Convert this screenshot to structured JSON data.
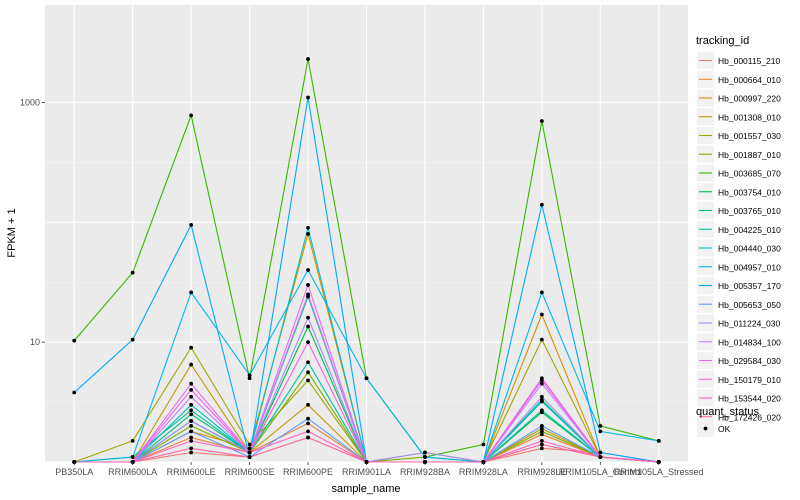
{
  "chart_data": {
    "type": "line",
    "title": "",
    "xlabel": "sample_name",
    "ylabel": "FPKM + 1",
    "y_scale": "log10",
    "ylim": [
      1,
      6500
    ],
    "grid": true,
    "background": "#EBEBEB",
    "yticks": [
      10,
      1000
    ],
    "categories": [
      "PB350LA",
      "RRIM600LA",
      "RRIM600LE",
      "RRIM600SE",
      "RRIM600PE",
      "RRIM901LA",
      "RRIM928BA",
      "RRIM928LA",
      "RRIM928LE",
      "RRIM105LA_Control",
      "RRIM105LA_Stressed"
    ],
    "legend_title": "tracking_id",
    "legend_position": "right",
    "series": [
      {
        "name": "Hb_000115_210",
        "color": "#F8766D",
        "values": [
          1,
          1,
          1.2,
          1.1,
          1.6,
          1,
          1,
          1,
          1.3,
          1.2,
          1
        ]
      },
      {
        "name": "Hb_000664_010",
        "color": "#EA8331",
        "values": [
          1,
          1,
          1.6,
          1.2,
          2.1,
          1,
          1,
          1,
          1.7,
          1.1,
          1
        ]
      },
      {
        "name": "Hb_000997_220",
        "color": "#D89000",
        "values": [
          1,
          1,
          1.8,
          1.3,
          80,
          1,
          1,
          1,
          17,
          1.1,
          1
        ]
      },
      {
        "name": "Hb_001308_010",
        "color": "#C09B00",
        "values": [
          1,
          1,
          6.5,
          1.2,
          3,
          1,
          1.2,
          1,
          1.9,
          1.1,
          1
        ]
      },
      {
        "name": "Hb_001557_030",
        "color": "#A3A500",
        "values": [
          1,
          1.5,
          9,
          1.4,
          4.8,
          1,
          1,
          1,
          10.5,
          1.1,
          1
        ]
      },
      {
        "name": "Hb_001887_010",
        "color": "#7CAE00",
        "values": [
          1,
          1,
          2,
          1.2,
          5.6,
          1,
          1.1,
          1,
          1.8,
          1.1,
          1
        ]
      },
      {
        "name": "Hb_003685_070",
        "color": "#39B600",
        "values": [
          10.3,
          38,
          780,
          5,
          2300,
          5,
          1.1,
          1.4,
          700,
          2,
          1.5
        ]
      },
      {
        "name": "Hb_003754_010",
        "color": "#00BB4E",
        "values": [
          1,
          1,
          2.2,
          1.2,
          13.5,
          1,
          1,
          1,
          2.6,
          1.1,
          1
        ]
      },
      {
        "name": "Hb_003765_010",
        "color": "#00BF7D",
        "values": [
          1,
          1,
          2.5,
          1.2,
          24,
          1,
          1,
          1,
          3.3,
          1.1,
          1
        ]
      },
      {
        "name": "Hb_004225_010",
        "color": "#00C1A3",
        "values": [
          1,
          1.1,
          2.7,
          1.2,
          6.8,
          1,
          1,
          1,
          2.7,
          1.1,
          1
        ]
      },
      {
        "name": "Hb_004440_030",
        "color": "#00BFC4",
        "values": [
          1,
          1,
          3,
          1.2,
          90,
          1,
          1,
          1,
          3.2,
          1.1,
          1
        ]
      },
      {
        "name": "Hb_004957_010",
        "color": "#00B8E7",
        "values": [
          1,
          1.1,
          26,
          5.3,
          40,
          5,
          1.1,
          1,
          26,
          1.8,
          1.5
        ]
      },
      {
        "name": "Hb_005357_170",
        "color": "#00A9FF",
        "values": [
          3.8,
          10.5,
          95,
          1.1,
          1100,
          1,
          1,
          1,
          140,
          1.2,
          1
        ]
      },
      {
        "name": "Hb_005653_050",
        "color": "#619CFF",
        "values": [
          1,
          1,
          1.8,
          1.1,
          2.3,
          1,
          1,
          1,
          2,
          1.1,
          1
        ]
      },
      {
        "name": "Hb_011224_030",
        "color": "#9F8CFF",
        "values": [
          1,
          1,
          2.2,
          1.2,
          16,
          1,
          1.2,
          1,
          3.5,
          1.1,
          1
        ]
      },
      {
        "name": "Hb_014834_100",
        "color": "#C77CFF",
        "values": [
          1,
          1,
          3.5,
          1.2,
          25,
          1,
          1,
          1,
          4.5,
          1.1,
          1
        ]
      },
      {
        "name": "Hb_029584_030",
        "color": "#E76BF3",
        "values": [
          1,
          1,
          4.5,
          1.2,
          30,
          1,
          1,
          1,
          4.8,
          1.1,
          1
        ]
      },
      {
        "name": "Hb_150179_010",
        "color": "#F763E0",
        "values": [
          1,
          1,
          4,
          1.2,
          10,
          1,
          1,
          1,
          5,
          1.1,
          1
        ]
      },
      {
        "name": "Hb_153544_020",
        "color": "#FF61C3",
        "values": [
          1,
          1,
          1.5,
          1.2,
          1.8,
          1,
          1,
          1,
          1.5,
          1.1,
          1
        ]
      },
      {
        "name": "Hb_172426_020",
        "color": "#FF67A4",
        "values": [
          1,
          1,
          1.3,
          1.1,
          1.6,
          1,
          1,
          1,
          1.4,
          1.1,
          1
        ]
      }
    ],
    "legend2_title": "quant_status",
    "legend2_entries": [
      "OK"
    ]
  }
}
